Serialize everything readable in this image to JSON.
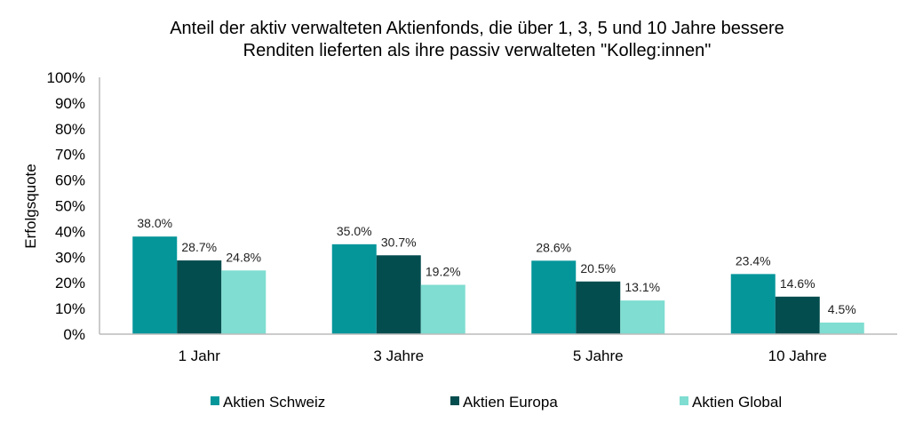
{
  "chart_data": {
    "type": "bar",
    "title_lines": [
      "Anteil der aktiv verwalteten Aktienfonds, die über 1, 3, 5 und 10 Jahre bessere",
      "Renditen lieferten als ihre passiv verwalteten \"Kolleg:innen\""
    ],
    "xlabel": "",
    "ylabel": "Erfolgsquote",
    "ylim": [
      0,
      100
    ],
    "yticks": [
      "0%",
      "10%",
      "20%",
      "30%",
      "40%",
      "50%",
      "60%",
      "70%",
      "80%",
      "90%",
      "100%"
    ],
    "grid": false,
    "legend_position": "bottom",
    "categories": [
      "1 Jahr",
      "3 Jahre",
      "5 Jahre",
      "10 Jahre"
    ],
    "series": [
      {
        "name": "Aktien Schweiz",
        "color": "#05969A",
        "values": [
          38.0,
          35.0,
          28.6,
          23.4
        ],
        "labels": [
          "38.0%",
          "35.0%",
          "28.6%",
          "23.4%"
        ]
      },
      {
        "name": "Aktien Europa",
        "color": "#034D4F",
        "values": [
          28.7,
          30.7,
          20.5,
          14.6
        ],
        "labels": [
          "28.7%",
          "30.7%",
          "20.5%",
          "14.6%"
        ]
      },
      {
        "name": "Aktien Global",
        "color": "#7FDDD1",
        "values": [
          24.8,
          19.2,
          13.1,
          4.5
        ],
        "labels": [
          "24.8%",
          "19.2%",
          "13.1%",
          "4.5%"
        ]
      }
    ]
  }
}
